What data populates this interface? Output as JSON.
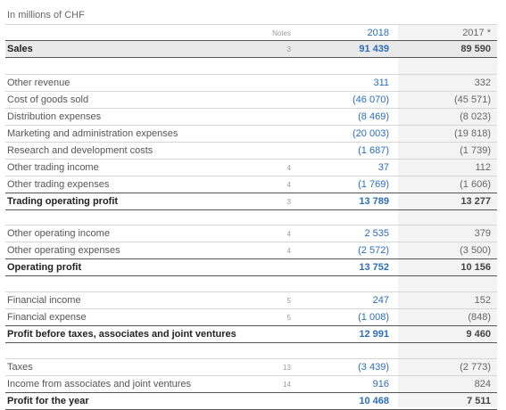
{
  "header": {
    "unit": "In millions of CHF",
    "notes": "Notes",
    "col1": "2018",
    "col2": "2017 *"
  },
  "groups": [
    [
      {
        "label": "Sales",
        "notes": "3",
        "v1": "91 439",
        "v2": "89 590",
        "bold": true
      }
    ],
    [
      {
        "label": "Other revenue",
        "v1": "311",
        "v2": "332"
      },
      {
        "label": "Cost of goods sold",
        "v1": "(46 070)",
        "v2": "(45 571)"
      },
      {
        "label": "Distribution expenses",
        "v1": "(8 469)",
        "v2": "(8 023)"
      },
      {
        "label": "Marketing and administration expenses",
        "v1": "(20 003)",
        "v2": "(19 818)"
      },
      {
        "label": "Research and development costs",
        "v1": "(1 687)",
        "v2": "(1 739)"
      },
      {
        "label": "Other trading income",
        "notes": "4",
        "v1": "37",
        "v2": "112"
      },
      {
        "label": "Other trading expenses",
        "notes": "4",
        "v1": "(1 769)",
        "v2": "(1 606)"
      },
      {
        "label": "Trading operating profit",
        "notes": "3",
        "v1": "13 789",
        "v2": "13 277",
        "bold": true
      }
    ],
    [
      {
        "label": "Other operating income",
        "notes": "4",
        "v1": "2 535",
        "v2": "379"
      },
      {
        "label": "Other operating expenses",
        "notes": "4",
        "v1": "(2 572)",
        "v2": "(3 500)"
      },
      {
        "label": "Operating profit",
        "v1": "13 752",
        "v2": "10 156",
        "bold": true
      }
    ],
    [
      {
        "label": "Financial income",
        "notes": "5",
        "v1": "247",
        "v2": "152"
      },
      {
        "label": "Financial expense",
        "notes": "5",
        "v1": "(1 008)",
        "v2": "(848)"
      },
      {
        "label": "Profit before taxes, associates and joint ventures",
        "v1": "12 991",
        "v2": "9 460",
        "bold": true
      }
    ],
    [
      {
        "label": "Taxes",
        "notes": "13",
        "v1": "(3 439)",
        "v2": "(2 773)"
      },
      {
        "label": "Income from associates and joint ventures",
        "notes": "14",
        "v1": "916",
        "v2": "824"
      },
      {
        "label": "Profit for the year",
        "v1": "10 468",
        "v2": "7 511",
        "bold": true
      }
    ]
  ]
}
